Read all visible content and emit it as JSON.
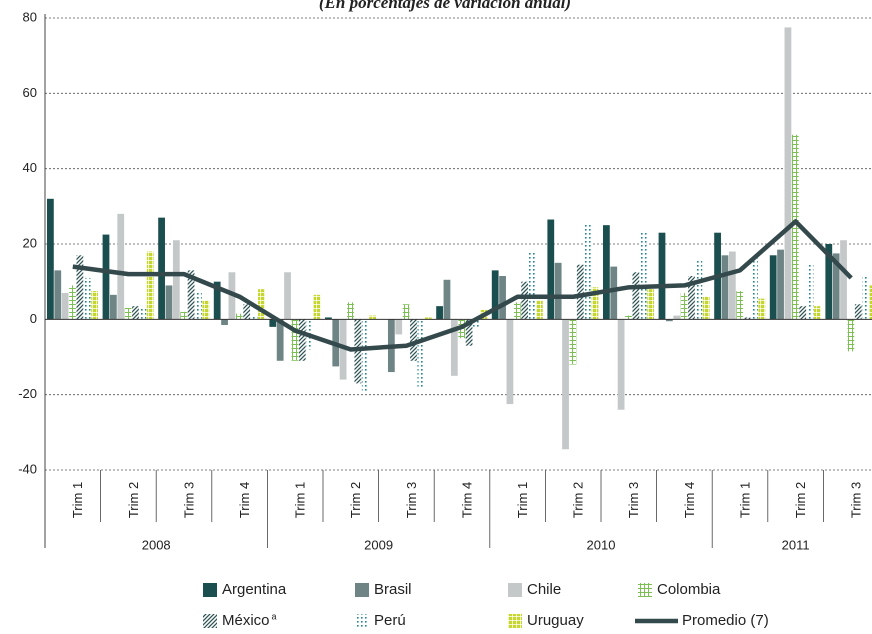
{
  "chart_data": {
    "type": "bar",
    "subtitle": "(En porcentajes de variación anual)",
    "year_groups": [
      {
        "year": "2008",
        "quarters": [
          "Trim 1",
          "Trim 2",
          "Trim 3",
          "Trim 4"
        ]
      },
      {
        "year": "2009",
        "quarters": [
          "Trim 1",
          "Trim 2",
          "Trim 3",
          "Trim 4"
        ]
      },
      {
        "year": "2010",
        "quarters": [
          "Trim 1",
          "Trim 2",
          "Trim 3",
          "Trim 4"
        ]
      },
      {
        "year": "2011",
        "quarters": [
          "Trim 1",
          "Trim 2",
          "Trim 3"
        ]
      }
    ],
    "series": [
      {
        "name": "Argentina",
        "color": "#1b4e4e",
        "fill": "solid",
        "values": [
          32,
          22.5,
          27,
          10,
          -2,
          0.5,
          0,
          3.5,
          13,
          26.5,
          25,
          23,
          23,
          17,
          20
        ]
      },
      {
        "name": "Brasil",
        "color": "#6e8485",
        "fill": "solid",
        "values": [
          13,
          6.5,
          9,
          -1.5,
          -11,
          -12.5,
          -14,
          10.5,
          11.5,
          15,
          14,
          -0.5,
          17,
          18.5,
          17.5
        ]
      },
      {
        "name": "Chile",
        "color": "#c4c8c9",
        "fill": "solid",
        "values": [
          7,
          28,
          21,
          12.5,
          12.5,
          -16,
          -4,
          -15,
          -22.5,
          -34.5,
          -24,
          1,
          18,
          77.5,
          21
        ]
      },
      {
        "name": "Colombia",
        "color": "#7cbf52",
        "fill": "grid",
        "values": [
          9,
          3,
          2,
          1.5,
          -11,
          4.5,
          4,
          -5,
          4.5,
          -12,
          1,
          7,
          7.5,
          49,
          -8.5
        ]
      },
      {
        "name": "México",
        "note": "a",
        "color": "#2d5355",
        "fill": "hatch",
        "values": [
          17,
          3.5,
          13,
          4,
          -11,
          -17,
          -11,
          -7,
          10,
          14.5,
          12.5,
          11.5,
          0.5,
          3.5,
          4
        ]
      },
      {
        "name": "Perú",
        "color": "#24868b",
        "fill": "dots",
        "values": [
          11,
          3,
          7,
          1,
          -8,
          -19,
          -18,
          -2,
          18,
          25.5,
          23,
          15.5,
          17,
          14.5,
          11.5
        ]
      },
      {
        "name": "Uruguay",
        "color": "#c6d62c",
        "fill": "checker",
        "values": [
          7.5,
          18,
          5,
          8,
          6.5,
          1,
          0.5,
          2.5,
          5,
          8.5,
          8,
          6,
          5.5,
          3.5,
          9
        ]
      }
    ],
    "line": {
      "name": "Promedio (7)",
      "color": "#34494c",
      "values": [
        14,
        12,
        12,
        6,
        -3,
        -8,
        -7,
        -2,
        6,
        6,
        8.5,
        9,
        13,
        26,
        11
      ]
    },
    "ylim": [
      -40,
      80
    ],
    "yticks": [
      -40,
      -20,
      0,
      20,
      40,
      60,
      80
    ],
    "grid": true
  }
}
